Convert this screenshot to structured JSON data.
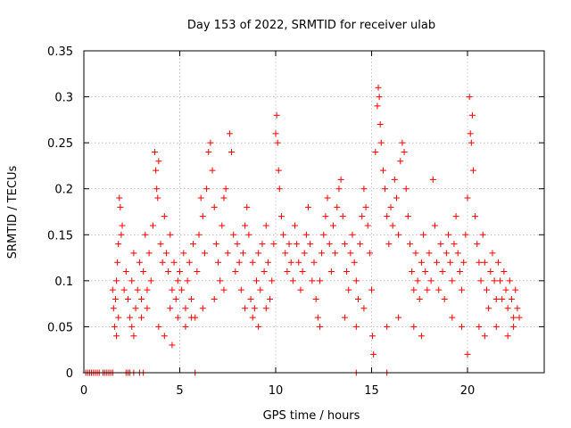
{
  "chart_data": {
    "type": "scatter",
    "title": "Day 153 of 2022, SRMTID for receiver ulab",
    "xlabel": "GPS time / hours",
    "ylabel": "SRMTID / TECUs",
    "xlim": [
      0,
      24
    ],
    "ylim": [
      0,
      0.35
    ],
    "xticks": [
      0,
      5,
      10,
      15,
      20
    ],
    "xtick_labels": [
      "0",
      "5",
      "10",
      "15",
      "20"
    ],
    "yticks": [
      0,
      0.05,
      0.1,
      0.15,
      0.2,
      0.25,
      0.3,
      0.35
    ],
    "ytick_labels": [
      "0",
      "0.05",
      "0.1",
      "0.15",
      "0.2",
      "0.25",
      "0.3",
      "0.35"
    ],
    "grid": true,
    "marker": "+",
    "color": "#ff0000",
    "series": [
      {
        "name": "SRMTID",
        "points": [
          [
            0.1,
            0
          ],
          [
            0.2,
            0
          ],
          [
            0.3,
            0
          ],
          [
            0.4,
            0
          ],
          [
            0.5,
            0
          ],
          [
            0.6,
            0
          ],
          [
            0.7,
            0
          ],
          [
            0.8,
            0
          ],
          [
            1.0,
            0
          ],
          [
            1.1,
            0
          ],
          [
            1.2,
            0
          ],
          [
            1.3,
            0
          ],
          [
            1.4,
            0
          ],
          [
            1.5,
            0
          ],
          [
            2.2,
            0
          ],
          [
            2.3,
            0
          ],
          [
            2.4,
            0
          ],
          [
            2.6,
            0
          ],
          [
            2.9,
            0
          ],
          [
            3.1,
            0
          ],
          [
            5.8,
            0
          ],
          [
            14.2,
            0
          ],
          [
            15.8,
            0
          ],
          [
            1.5,
            0.09
          ],
          [
            1.55,
            0.07
          ],
          [
            1.6,
            0.05
          ],
          [
            1.65,
            0.08
          ],
          [
            1.7,
            0.1
          ],
          [
            1.75,
            0.12
          ],
          [
            1.8,
            0.14
          ],
          [
            1.85,
            0.19
          ],
          [
            1.9,
            0.18
          ],
          [
            1.95,
            0.15
          ],
          [
            2.0,
            0.16
          ],
          [
            1.7,
            0.04
          ],
          [
            1.8,
            0.06
          ],
          [
            2.1,
            0.09
          ],
          [
            2.2,
            0.11
          ],
          [
            2.3,
            0.08
          ],
          [
            2.4,
            0.06
          ],
          [
            2.5,
            0.1
          ],
          [
            2.6,
            0.13
          ],
          [
            2.7,
            0.07
          ],
          [
            2.8,
            0.09
          ],
          [
            2.9,
            0.12
          ],
          [
            3.0,
            0.08
          ],
          [
            3.1,
            0.11
          ],
          [
            3.2,
            0.15
          ],
          [
            3.3,
            0.09
          ],
          [
            3.4,
            0.13
          ],
          [
            3.5,
            0.1
          ],
          [
            3.6,
            0.16
          ],
          [
            3.7,
            0.24
          ],
          [
            3.75,
            0.22
          ],
          [
            3.8,
            0.2
          ],
          [
            3.85,
            0.19
          ],
          [
            3.9,
            0.23
          ],
          [
            4.0,
            0.14
          ],
          [
            4.1,
            0.12
          ],
          [
            4.2,
            0.17
          ],
          [
            4.3,
            0.13
          ],
          [
            4.4,
            0.11
          ],
          [
            4.5,
            0.15
          ],
          [
            4.6,
            0.09
          ],
          [
            4.7,
            0.12
          ],
          [
            4.8,
            0.08
          ],
          [
            4.9,
            0.1
          ],
          [
            2.5,
            0.05
          ],
          [
            2.6,
            0.04
          ],
          [
            3.0,
            0.06
          ],
          [
            3.3,
            0.07
          ],
          [
            3.9,
            0.05
          ],
          [
            4.2,
            0.04
          ],
          [
            4.5,
            0.07
          ],
          [
            4.6,
            0.03
          ],
          [
            4.9,
            0.06
          ],
          [
            5.0,
            0.11
          ],
          [
            5.1,
            0.09
          ],
          [
            5.2,
            0.13
          ],
          [
            5.3,
            0.07
          ],
          [
            5.4,
            0.1
          ],
          [
            5.5,
            0.12
          ],
          [
            5.6,
            0.08
          ],
          [
            5.7,
            0.14
          ],
          [
            5.8,
            0.06
          ],
          [
            5.9,
            0.11
          ],
          [
            6.0,
            0.15
          ],
          [
            6.1,
            0.19
          ],
          [
            6.2,
            0.17
          ],
          [
            6.3,
            0.13
          ],
          [
            6.4,
            0.2
          ],
          [
            6.5,
            0.24
          ],
          [
            6.6,
            0.25
          ],
          [
            6.7,
            0.22
          ],
          [
            6.8,
            0.18
          ],
          [
            6.9,
            0.14
          ],
          [
            7.0,
            0.12
          ],
          [
            7.1,
            0.1
          ],
          [
            7.2,
            0.16
          ],
          [
            7.3,
            0.19
          ],
          [
            7.4,
            0.2
          ],
          [
            7.5,
            0.13
          ],
          [
            7.6,
            0.26
          ],
          [
            7.7,
            0.24
          ],
          [
            7.8,
            0.15
          ],
          [
            7.9,
            0.11
          ],
          [
            8.0,
            0.14
          ],
          [
            8.1,
            0.12
          ],
          [
            8.2,
            0.09
          ],
          [
            8.3,
            0.13
          ],
          [
            8.4,
            0.16
          ],
          [
            8.5,
            0.18
          ],
          [
            8.6,
            0.15
          ],
          [
            8.7,
            0.08
          ],
          [
            8.8,
            0.12
          ],
          [
            8.9,
            0.07
          ],
          [
            9.0,
            0.1
          ],
          [
            9.1,
            0.13
          ],
          [
            9.2,
            0.09
          ],
          [
            9.3,
            0.14
          ],
          [
            9.4,
            0.11
          ],
          [
            9.5,
            0.16
          ],
          [
            9.6,
            0.12
          ],
          [
            9.7,
            0.08
          ],
          [
            9.8,
            0.1
          ],
          [
            9.9,
            0.14
          ],
          [
            5.3,
            0.05
          ],
          [
            5.6,
            0.06
          ],
          [
            6.2,
            0.07
          ],
          [
            6.8,
            0.08
          ],
          [
            7.3,
            0.09
          ],
          [
            8.4,
            0.07
          ],
          [
            8.8,
            0.06
          ],
          [
            9.1,
            0.05
          ],
          [
            9.5,
            0.07
          ],
          [
            10.0,
            0.26
          ],
          [
            10.05,
            0.28
          ],
          [
            10.1,
            0.25
          ],
          [
            10.15,
            0.22
          ],
          [
            10.2,
            0.2
          ],
          [
            10.3,
            0.17
          ],
          [
            10.4,
            0.15
          ],
          [
            10.5,
            0.13
          ],
          [
            10.6,
            0.11
          ],
          [
            10.7,
            0.14
          ],
          [
            10.8,
            0.12
          ],
          [
            10.9,
            0.1
          ],
          [
            11.0,
            0.16
          ],
          [
            11.1,
            0.14
          ],
          [
            11.2,
            0.12
          ],
          [
            11.3,
            0.09
          ],
          [
            11.4,
            0.11
          ],
          [
            11.5,
            0.13
          ],
          [
            11.6,
            0.15
          ],
          [
            11.7,
            0.18
          ],
          [
            11.8,
            0.14
          ],
          [
            11.9,
            0.1
          ],
          [
            12.0,
            0.12
          ],
          [
            12.1,
            0.08
          ],
          [
            12.2,
            0.06
          ],
          [
            12.3,
            0.1
          ],
          [
            12.4,
            0.13
          ],
          [
            12.5,
            0.15
          ],
          [
            12.6,
            0.17
          ],
          [
            12.7,
            0.19
          ],
          [
            12.8,
            0.14
          ],
          [
            12.9,
            0.11
          ],
          [
            13.0,
            0.16
          ],
          [
            13.1,
            0.13
          ],
          [
            13.2,
            0.18
          ],
          [
            13.3,
            0.2
          ],
          [
            13.4,
            0.21
          ],
          [
            13.5,
            0.17
          ],
          [
            13.6,
            0.14
          ],
          [
            13.7,
            0.11
          ],
          [
            13.8,
            0.09
          ],
          [
            13.9,
            0.13
          ],
          [
            14.0,
            0.15
          ],
          [
            14.1,
            0.12
          ],
          [
            14.2,
            0.1
          ],
          [
            14.3,
            0.08
          ],
          [
            14.4,
            0.14
          ],
          [
            14.5,
            0.17
          ],
          [
            14.6,
            0.2
          ],
          [
            14.7,
            0.18
          ],
          [
            14.8,
            0.16
          ],
          [
            14.9,
            0.13
          ],
          [
            15.0,
            0.09
          ],
          [
            15.05,
            0.04
          ],
          [
            15.1,
            0.02
          ],
          [
            15.2,
            0.24
          ],
          [
            15.3,
            0.29
          ],
          [
            15.35,
            0.31
          ],
          [
            15.4,
            0.3
          ],
          [
            15.45,
            0.27
          ],
          [
            15.5,
            0.25
          ],
          [
            15.6,
            0.22
          ],
          [
            15.7,
            0.2
          ],
          [
            15.8,
            0.17
          ],
          [
            15.9,
            0.14
          ],
          [
            16.0,
            0.18
          ],
          [
            16.1,
            0.16
          ],
          [
            16.2,
            0.21
          ],
          [
            16.3,
            0.19
          ],
          [
            16.4,
            0.15
          ],
          [
            16.5,
            0.23
          ],
          [
            16.6,
            0.25
          ],
          [
            16.7,
            0.24
          ],
          [
            16.8,
            0.2
          ],
          [
            16.9,
            0.17
          ],
          [
            17.0,
            0.14
          ],
          [
            17.1,
            0.11
          ],
          [
            17.2,
            0.09
          ],
          [
            17.3,
            0.13
          ],
          [
            17.4,
            0.1
          ],
          [
            17.5,
            0.08
          ],
          [
            17.6,
            0.12
          ],
          [
            17.7,
            0.15
          ],
          [
            17.8,
            0.11
          ],
          [
            17.9,
            0.09
          ],
          [
            12.3,
            0.05
          ],
          [
            13.6,
            0.06
          ],
          [
            14.2,
            0.05
          ],
          [
            14.6,
            0.07
          ],
          [
            15.8,
            0.05
          ],
          [
            16.4,
            0.06
          ],
          [
            17.2,
            0.05
          ],
          [
            17.6,
            0.04
          ],
          [
            18.0,
            0.13
          ],
          [
            18.1,
            0.1
          ],
          [
            18.2,
            0.21
          ],
          [
            18.3,
            0.16
          ],
          [
            18.4,
            0.12
          ],
          [
            18.5,
            0.09
          ],
          [
            18.6,
            0.14
          ],
          [
            18.7,
            0.11
          ],
          [
            18.8,
            0.08
          ],
          [
            18.9,
            0.13
          ],
          [
            19.0,
            0.15
          ],
          [
            19.1,
            0.12
          ],
          [
            19.2,
            0.1
          ],
          [
            19.3,
            0.14
          ],
          [
            19.4,
            0.17
          ],
          [
            19.5,
            0.13
          ],
          [
            19.6,
            0.11
          ],
          [
            19.7,
            0.09
          ],
          [
            19.8,
            0.12
          ],
          [
            19.9,
            0.15
          ],
          [
            20.0,
            0.19
          ],
          [
            20.1,
            0.3
          ],
          [
            20.15,
            0.26
          ],
          [
            20.2,
            0.25
          ],
          [
            20.25,
            0.28
          ],
          [
            20.3,
            0.22
          ],
          [
            20.4,
            0.17
          ],
          [
            20.5,
            0.14
          ],
          [
            20.6,
            0.12
          ],
          [
            20.7,
            0.1
          ],
          [
            20.8,
            0.15
          ],
          [
            20.9,
            0.12
          ],
          [
            21.0,
            0.09
          ],
          [
            21.1,
            0.07
          ],
          [
            21.2,
            0.11
          ],
          [
            21.3,
            0.13
          ],
          [
            21.4,
            0.1
          ],
          [
            21.5,
            0.08
          ],
          [
            21.6,
            0.12
          ],
          [
            21.7,
            0.1
          ],
          [
            21.8,
            0.08
          ],
          [
            21.9,
            0.11
          ],
          [
            22.0,
            0.09
          ],
          [
            22.1,
            0.07
          ],
          [
            22.2,
            0.1
          ],
          [
            22.3,
            0.08
          ],
          [
            22.4,
            0.06
          ],
          [
            22.5,
            0.09
          ],
          [
            22.6,
            0.07
          ],
          [
            22.7,
            0.06
          ],
          [
            19.2,
            0.06
          ],
          [
            19.7,
            0.05
          ],
          [
            20.0,
            0.02
          ],
          [
            20.6,
            0.05
          ],
          [
            20.9,
            0.04
          ],
          [
            21.5,
            0.05
          ],
          [
            22.1,
            0.04
          ],
          [
            22.4,
            0.05
          ]
        ]
      }
    ]
  }
}
